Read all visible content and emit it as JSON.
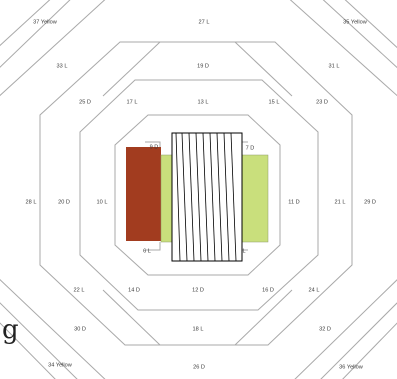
{
  "labels": {
    "l37": "37 Yellow",
    "l27": "27 L",
    "l35": "35 Yellow",
    "l33": "33 L",
    "l19": "19 D",
    "l31": "31 L",
    "l25": "25 D",
    "l17": "17 L",
    "l13": "13 L",
    "l15": "15 L",
    "l23": "23 D",
    "l9": "9 D",
    "l7": "7 D",
    "l28": "28 L",
    "l20": "20 D",
    "l10": "10 L",
    "l11": "11 D",
    "l21": "21 L",
    "l29": "29 D",
    "l6": "6 L",
    "lL": "L",
    "l22": "22 L",
    "l14": "14 D",
    "l12": "12 D",
    "l16": "16 D",
    "l24": "24 L",
    "l30": "30 D",
    "l18": "18 L",
    "l32": "32 D",
    "l34": "34 Yellow",
    "l26": "26 D",
    "l36": "36 Yellow"
  },
  "edge_glyph": "g",
  "colors": {
    "line": "#a9a9a9",
    "rust": "#a23c1f",
    "lime": "#c9df7c",
    "text": "#3a3a3a"
  }
}
